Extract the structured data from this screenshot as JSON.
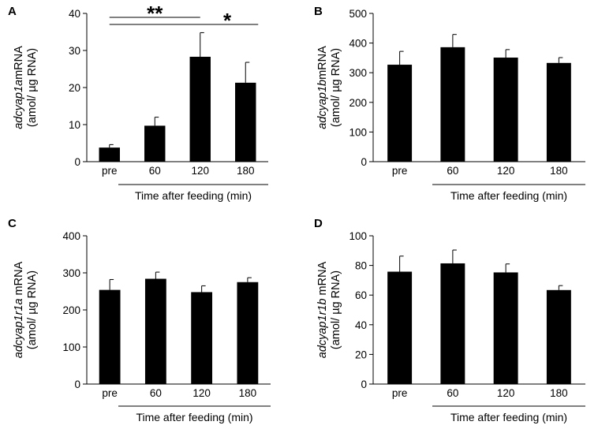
{
  "chart_data": [
    {
      "panel": "A",
      "type": "bar",
      "categories": [
        "pre",
        "60",
        "120",
        "180"
      ],
      "values": [
        3.8,
        9.7,
        28.3,
        21.3
      ],
      "errors": [
        0.8,
        2.3,
        6.5,
        5.5
      ],
      "ylabel_gene": "adcyap1a",
      "ylabel_suffix": "mRNA",
      "ylabel_units": "(amol/ µg RNA)",
      "xlabel": "Time after feeding (min)",
      "ylim": [
        0,
        40
      ],
      "yticks": [
        "0",
        "10",
        "20",
        "30",
        "40"
      ],
      "significance": [
        {
          "label": "**",
          "from": "pre",
          "to": "120"
        },
        {
          "label": "*",
          "from": "pre",
          "to": "180"
        }
      ]
    },
    {
      "panel": "B",
      "type": "bar",
      "categories": [
        "pre",
        "60",
        "120",
        "180"
      ],
      "values": [
        327,
        386,
        351,
        333
      ],
      "errors": [
        45,
        43,
        27,
        18
      ],
      "ylabel_gene": "adcyap1b",
      "ylabel_suffix": "mRNA",
      "ylabel_units": "(amol/ µg RNA)",
      "xlabel": "Time after feeding (min)",
      "ylim": [
        0,
        500
      ],
      "yticks": [
        "0",
        "100",
        "200",
        "300",
        "400",
        "500"
      ],
      "significance": []
    },
    {
      "panel": "C",
      "type": "bar",
      "categories": [
        "pre",
        "60",
        "120",
        "180"
      ],
      "values": [
        254,
        284,
        248,
        275
      ],
      "errors": [
        28,
        18,
        17,
        12
      ],
      "ylabel_gene": "adcyap1r1a",
      "ylabel_suffix": " mRNA",
      "ylabel_units": "(amol/ µg RNA)",
      "xlabel": "Time after feeding (min)",
      "ylim": [
        0,
        400
      ],
      "yticks": [
        "0",
        "100",
        "200",
        "300",
        "400"
      ],
      "significance": []
    },
    {
      "panel": "D",
      "type": "bar",
      "categories": [
        "pre",
        "60",
        "120",
        "180"
      ],
      "values": [
        75.8,
        81.4,
        75.3,
        63.4
      ],
      "errors": [
        10.5,
        9,
        5.7,
        3
      ],
      "ylabel_gene": "adcyap1r1b",
      "ylabel_suffix": " mRNA",
      "ylabel_units": "(amol/ µg RNA)",
      "xlabel": "Time after feeding (min)",
      "ylim": [
        0,
        100
      ],
      "yticks": [
        "0",
        "20",
        "40",
        "60",
        "80",
        "100"
      ],
      "significance": []
    }
  ]
}
